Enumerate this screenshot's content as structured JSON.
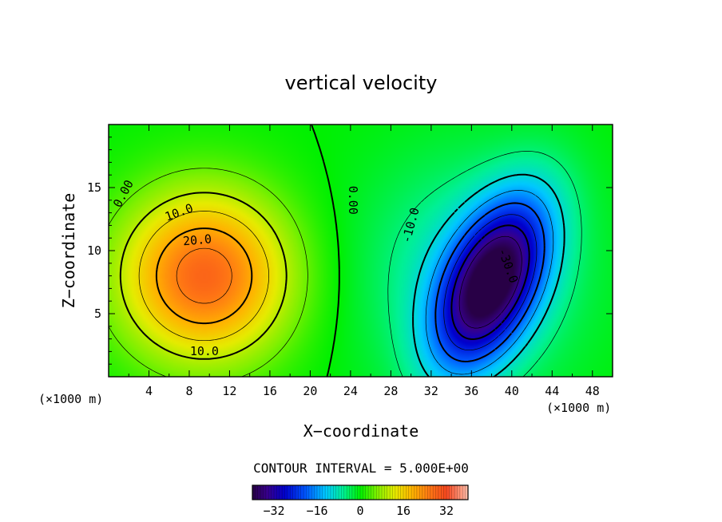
{
  "chart_data": {
    "type": "heatmap",
    "title": "vertical velocity",
    "xlabel": "X−coordinate",
    "ylabel": "Z−coordinate",
    "x_unit_left": "(×1000 m)",
    "x_unit_right": "(×1000 m)",
    "xlim": [
      0,
      50
    ],
    "ylim": [
      0,
      20
    ],
    "x_ticks": [
      {
        "value": 4,
        "label": "4"
      },
      {
        "value": 8,
        "label": "8"
      },
      {
        "value": 12,
        "label": "12"
      },
      {
        "value": 16,
        "label": "16"
      },
      {
        "value": 20,
        "label": "20"
      },
      {
        "value": 24,
        "label": "24"
      },
      {
        "value": 28,
        "label": "28"
      },
      {
        "value": 32,
        "label": "32"
      },
      {
        "value": 36,
        "label": "36"
      },
      {
        "value": 40,
        "label": "40"
      },
      {
        "value": 44,
        "label": "44"
      },
      {
        "value": 48,
        "label": "48"
      }
    ],
    "y_ticks": [
      {
        "value": 5,
        "label": "5"
      },
      {
        "value": 10,
        "label": "10"
      },
      {
        "value": 15,
        "label": "15"
      }
    ],
    "contour_interval_text": "CONTOUR INTERVAL = 5.000E+00",
    "contour_labels": [
      {
        "text": "0.00",
        "x": 1.5,
        "z": 14.5,
        "angle": -62
      },
      {
        "text": "10.0",
        "x": 7.0,
        "z": 13.0,
        "angle": -20
      },
      {
        "text": "20.0",
        "x": 8.8,
        "z": 10.8,
        "angle": -5
      },
      {
        "text": "10.0",
        "x": 9.5,
        "z": 2.0,
        "angle": 0
      },
      {
        "text": "0.00",
        "x": 24.2,
        "z": 14.0,
        "angle": 90
      },
      {
        "text": "-10.0",
        "x": 30.0,
        "z": 12.0,
        "angle": -75
      },
      {
        "text": "-30.0",
        "x": 39.6,
        "z": 8.8,
        "angle": 70
      }
    ],
    "field_extrema": [
      {
        "kind": "updraft_max",
        "x": 9.5,
        "z": 8.0,
        "value": 28
      },
      {
        "kind": "downdraft_min",
        "x": 38.0,
        "z": 7.5,
        "value": -38
      }
    ],
    "colorbar": {
      "min": -40,
      "max": 40,
      "tick_labels": [
        {
          "value": -32,
          "label": "−32"
        },
        {
          "value": -16,
          "label": "−16"
        },
        {
          "value": 0,
          "label": "0"
        },
        {
          "value": 16,
          "label": "16"
        },
        {
          "value": 32,
          "label": "32"
        }
      ]
    },
    "grid": false
  }
}
